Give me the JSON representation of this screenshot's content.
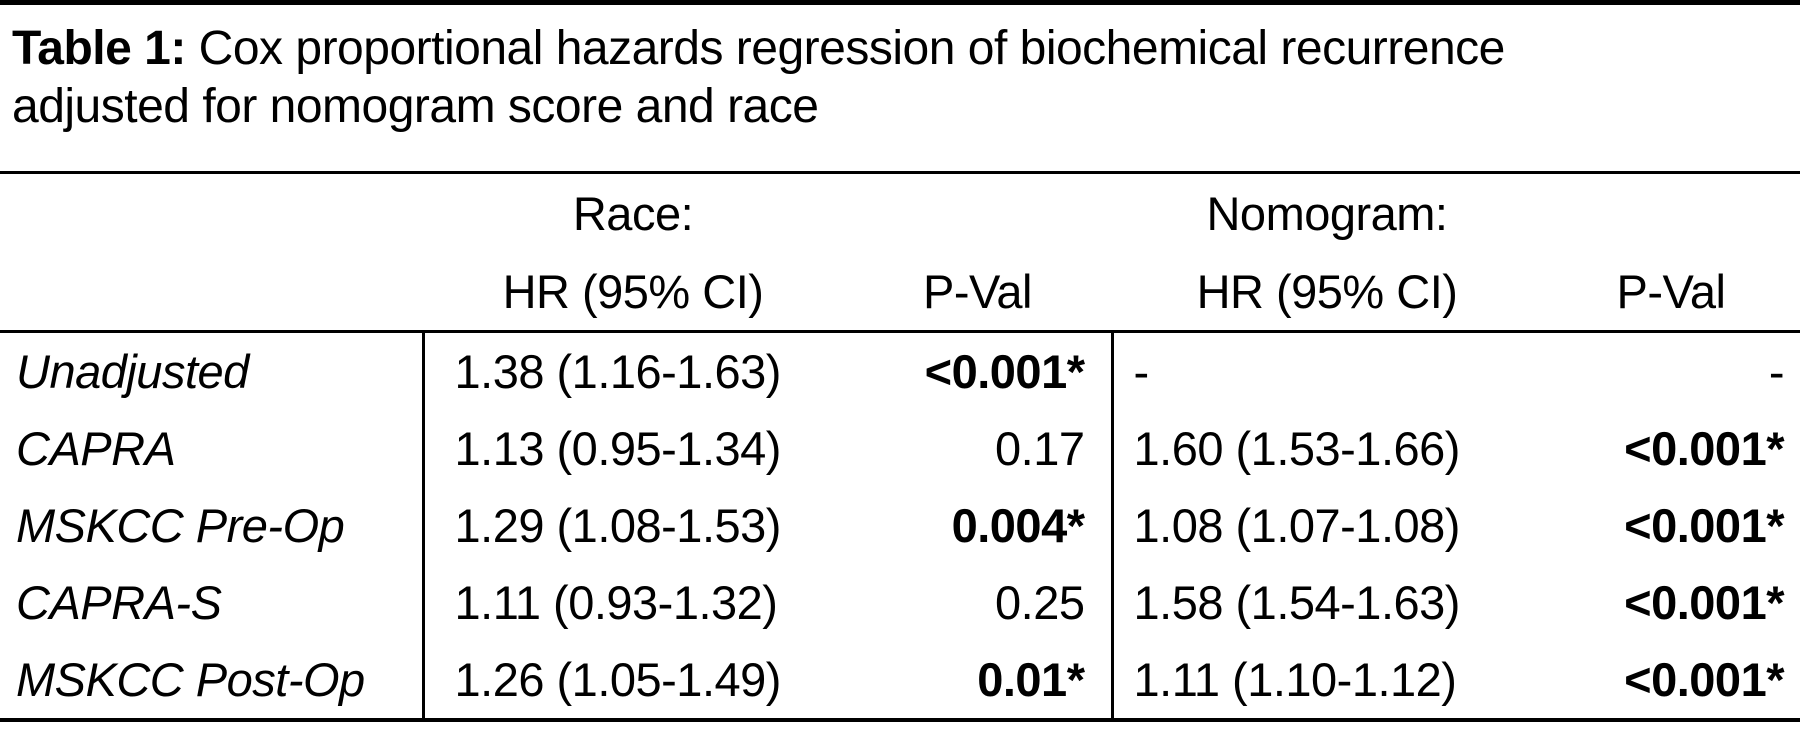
{
  "title": {
    "label": "Table 1:",
    "line1": "Cox proportional hazards regression of biochemical recurrence",
    "line2": "adjusted for nomogram score and race"
  },
  "header": {
    "race_group": "Race:",
    "nomogram_group": "Nomogram:",
    "hr_col": "HR (95% CI)",
    "pval_col": "P-Val"
  },
  "table": {
    "rows": [
      {
        "label": "Unadjusted",
        "race_hr": "1.38 (1.16-1.63)",
        "race_pval": "<0.001*",
        "nom_hr": "-",
        "nom_pval": "-"
      },
      {
        "label": "CAPRA",
        "race_hr": "1.13 (0.95-1.34)",
        "race_pval": "0.17",
        "nom_hr": "1.60 (1.53-1.66)",
        "nom_pval": "<0.001*"
      },
      {
        "label": "MSKCC Pre-Op",
        "race_hr": "1.29 (1.08-1.53)",
        "race_pval": "0.004*",
        "nom_hr": "1.08 (1.07-1.08)",
        "nom_pval": "<0.001*"
      },
      {
        "label": "CAPRA-S",
        "race_hr": "1.11 (0.93-1.32)",
        "race_pval": "0.25",
        "nom_hr": "1.58 (1.54-1.63)",
        "nom_pval": "<0.001*"
      },
      {
        "label": "MSKCC Post-Op",
        "race_hr": "1.26 (1.05-1.49)",
        "race_pval": "0.01*",
        "nom_hr": "1.11 (1.10-1.12)",
        "nom_pval": "<0.001*"
      }
    ]
  },
  "colors": {
    "text": "#000000",
    "background": "#ffffff",
    "rule": "#000000"
  }
}
